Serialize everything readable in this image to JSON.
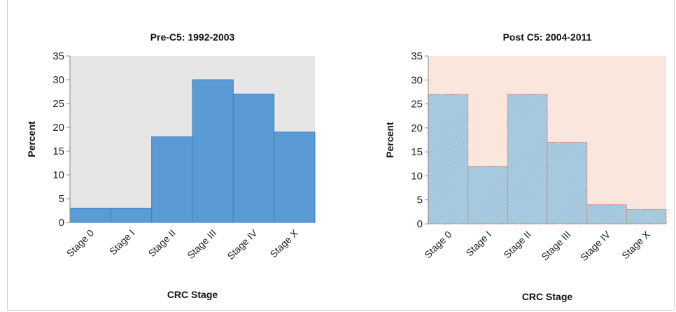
{
  "chart_data": [
    {
      "type": "bar",
      "title": "Pre-C5: 1992-2003",
      "xlabel": "CRC Stage",
      "ylabel": "Percent",
      "categories": [
        "Stage 0",
        "Stage I",
        "Stage II",
        "Stage III",
        "Stage IV",
        "Stage X"
      ],
      "values": [
        3,
        3,
        18,
        30,
        27,
        19
      ],
      "ylim": [
        0,
        35
      ],
      "yticks": [
        "0",
        "5",
        "10",
        "15",
        "20",
        "25",
        "30",
        "35"
      ],
      "colors": {
        "bar": "#5b9bd5",
        "bar_stroke": "#3d7fbf",
        "plot_bg": "#e6e6e6"
      }
    },
    {
      "type": "bar",
      "title": "Post C5: 2004-2011",
      "xlabel": "CRC Stage",
      "ylabel": "Percent",
      "categories": [
        "Stage 0",
        "Stage I",
        "Stage II",
        "Stage III",
        "Stage IV",
        "Stage X"
      ],
      "values": [
        27,
        12,
        27,
        17,
        4,
        3
      ],
      "ylim": [
        0,
        35
      ],
      "yticks": [
        "0",
        "5",
        "10",
        "15",
        "20",
        "25",
        "30",
        "35"
      ],
      "colors": {
        "bar": "#a9cbe0",
        "bar_stroke": "#c98a7f",
        "plot_bg": "#fbe6de"
      }
    }
  ]
}
